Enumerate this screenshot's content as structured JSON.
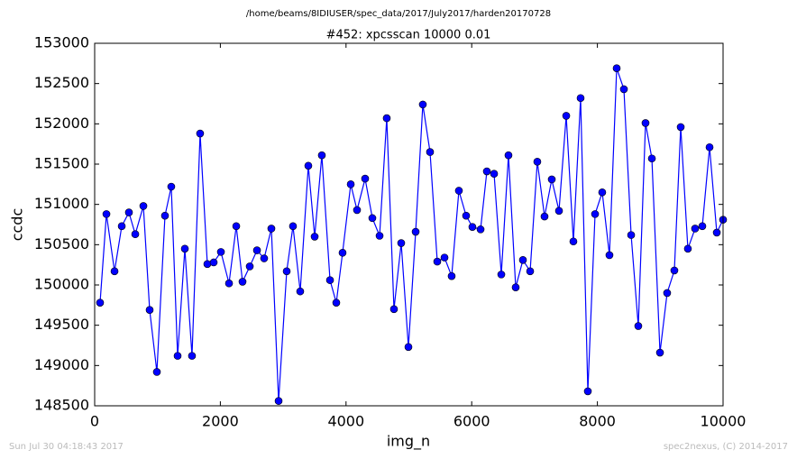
{
  "chart_data": {
    "type": "line",
    "suptitle": "/home/beams/8IDIUSER/spec_data/2017/July2017/harden20170728",
    "title": "#452: xpcsscan 10000 0.01",
    "xlabel": "img_n",
    "ylabel": "ccdc",
    "footer_left": "Sun Jul 30 04:18:43 2017",
    "footer_right": "spec2nexus, (C) 2014-2017",
    "x": [
      86,
      187,
      316,
      431,
      545,
      646,
      775,
      875,
      990,
      1119,
      1219,
      1320,
      1435,
      1549,
      1678,
      1793,
      1894,
      2009,
      2138,
      2253,
      2353,
      2468,
      2583,
      2697,
      2812,
      2927,
      3056,
      3156,
      3271,
      3400,
      3501,
      3615,
      3745,
      3845,
      3945,
      4075,
      4175,
      4304,
      4419,
      4534,
      4648,
      4763,
      4878,
      4993,
      5108,
      5222,
      5337,
      5452,
      5567,
      5681,
      5796,
      5911,
      6011,
      6141,
      6241,
      6356,
      6471,
      6585,
      6700,
      6815,
      6930,
      7044,
      7159,
      7274,
      7389,
      7504,
      7618,
      7733,
      7848,
      7963,
      8077,
      8192,
      8307,
      8422,
      8537,
      8651,
      8766,
      8867,
      8996,
      9110,
      9225,
      9326,
      9440,
      9555,
      9670,
      9785,
      9900,
      10000
    ],
    "series": [
      {
        "color": "#0000ff",
        "values": [
          149780,
          150880,
          150170,
          150730,
          150900,
          150630,
          150980,
          149690,
          148920,
          150860,
          151220,
          149120,
          150450,
          149120,
          151880,
          150260,
          150280,
          150410,
          150020,
          150730,
          150040,
          150230,
          150430,
          150330,
          150700,
          148560,
          150170,
          150730,
          149920,
          151480,
          150600,
          151610,
          150060,
          149780,
          150400,
          151250,
          150930,
          151320,
          150830,
          150610,
          152070,
          149700,
          150520,
          149230,
          150660,
          152240,
          151650,
          150290,
          150340,
          150110,
          151170,
          150860,
          150720,
          150690,
          151410,
          151380,
          150130,
          151610,
          149970,
          150310,
          150170,
          151530,
          150850,
          151310,
          150920,
          152100,
          150540,
          152320,
          148680,
          150880,
          151150,
          150370,
          152690,
          152430,
          150620,
          149490,
          152010,
          151570,
          149160,
          149900,
          150180,
          151960,
          150450,
          150700,
          150730,
          151710,
          150650,
          150810
        ]
      }
    ],
    "xlim": [
      0,
      10000
    ],
    "xticks": [
      0,
      2000,
      4000,
      6000,
      8000,
      10000
    ],
    "ylim": [
      148500,
      153000
    ],
    "yticks": [
      148500,
      149000,
      149500,
      150000,
      150500,
      151000,
      151500,
      152000,
      152500,
      153000
    ]
  }
}
